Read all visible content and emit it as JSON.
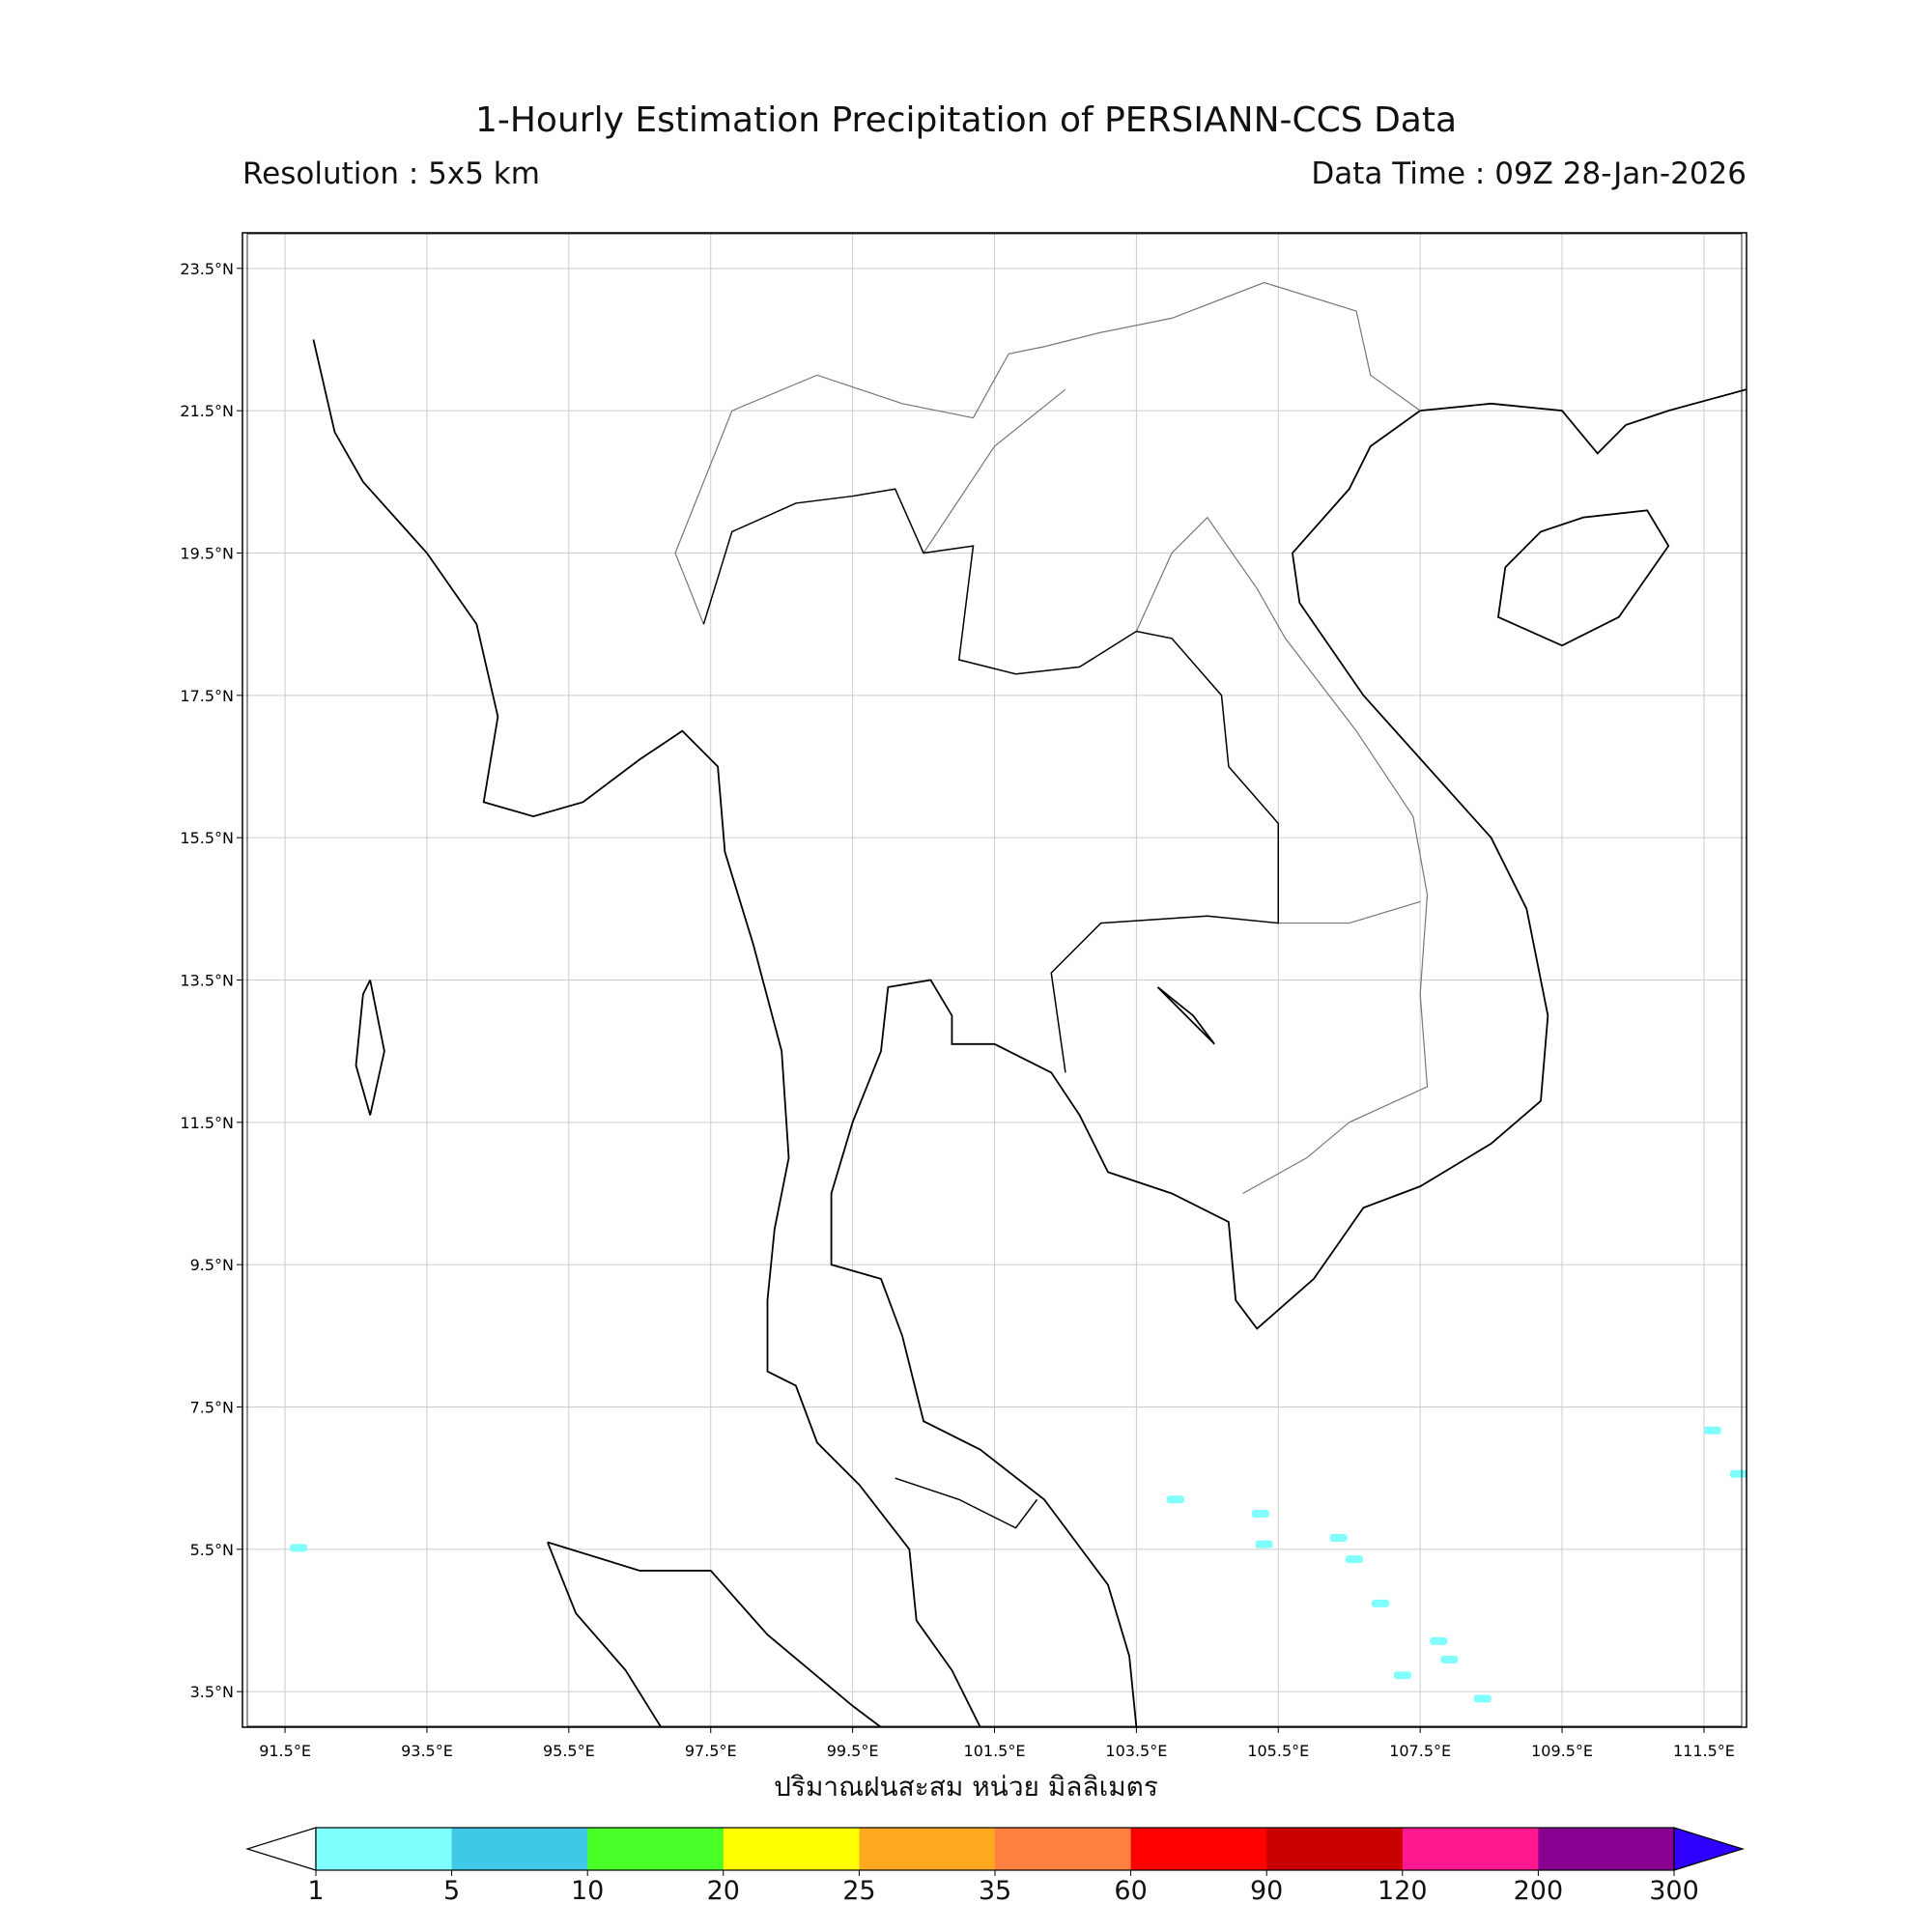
{
  "title": "1-Hourly Estimation Precipitation of PERSIANN-CCS Data",
  "resolution": "Resolution : 5x5 km",
  "data_time": "Data Time : 09Z 28-Jan-2026",
  "xlabel": "ปริมาณฝนสะสม หน่วย มิลลิเมตร",
  "map": {
    "lon_range": [
      90.9,
      112.1
    ],
    "lat_range": [
      3.0,
      24.0
    ],
    "lon_ticks": [
      "91.5°E",
      "93.5°E",
      "95.5°E",
      "97.5°E",
      "99.5°E",
      "101.5°E",
      "103.5°E",
      "105.5°E",
      "107.5°E",
      "109.5°E",
      "111.5°E"
    ],
    "lat_ticks": [
      "23.5°N",
      "21.5°N",
      "19.5°N",
      "17.5°N",
      "15.5°N",
      "13.5°N",
      "11.5°N",
      "9.5°N",
      "7.5°N",
      "5.5°N",
      "3.5°N"
    ],
    "grid": true,
    "precip_cells": [
      {
        "lon": 91.69,
        "lat": 5.52,
        "mm": "1-5"
      },
      {
        "lon": 104.05,
        "lat": 6.2,
        "mm": "1-5"
      },
      {
        "lon": 105.25,
        "lat": 6.0,
        "mm": "1-5"
      },
      {
        "lon": 105.3,
        "lat": 5.57,
        "mm": "1-5"
      },
      {
        "lon": 106.57,
        "lat": 5.36,
        "mm": "1-5"
      },
      {
        "lon": 106.35,
        "lat": 5.66,
        "mm": "1-5"
      },
      {
        "lon": 106.94,
        "lat": 4.74,
        "mm": "1-5"
      },
      {
        "lon": 107.76,
        "lat": 4.21,
        "mm": "1-5"
      },
      {
        "lon": 107.91,
        "lat": 3.95,
        "mm": "1-5"
      },
      {
        "lon": 107.25,
        "lat": 3.73,
        "mm": "1-5"
      },
      {
        "lon": 108.38,
        "lat": 3.4,
        "mm": "1-5"
      },
      {
        "lon": 111.99,
        "lat": 6.56,
        "mm": "1-5"
      },
      {
        "lon": 111.62,
        "lat": 7.17,
        "mm": "1-5"
      }
    ]
  },
  "colorbar": {
    "labels": [
      "1",
      "5",
      "10",
      "20",
      "25",
      "35",
      "60",
      "90",
      "120",
      "200",
      "300"
    ],
    "colors": [
      "#80ffff",
      "#40c8e8",
      "#48ff28",
      "#ffff00",
      "#ffa820",
      "#ff8040",
      "#ff0000",
      "#c80000",
      "#ff1890",
      "#880090"
    ],
    "under_color": "#ffffff",
    "over_color": "#3000ff"
  }
}
